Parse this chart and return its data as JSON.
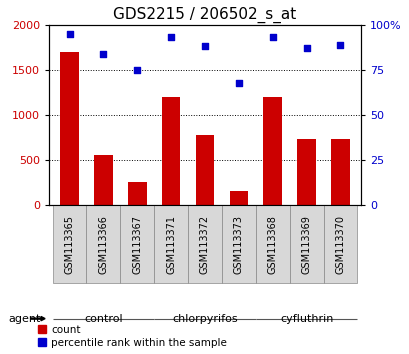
{
  "title": "GDS2215 / 206502_s_at",
  "categories": [
    "GSM113365",
    "GSM113366",
    "GSM113367",
    "GSM113371",
    "GSM113372",
    "GSM113373",
    "GSM113368",
    "GSM113369",
    "GSM113370"
  ],
  "bar_values": [
    1700,
    560,
    260,
    1200,
    780,
    160,
    1200,
    730,
    730
  ],
  "dot_values": [
    95,
    84,
    75,
    93,
    88,
    68,
    93,
    87,
    89
  ],
  "bar_color": "#cc0000",
  "dot_color": "#0000cc",
  "left_ylim": [
    0,
    2000
  ],
  "right_ylim": [
    0,
    100
  ],
  "left_yticks": [
    0,
    500,
    1000,
    1500,
    2000
  ],
  "right_yticks": [
    0,
    25,
    50,
    75,
    100
  ],
  "right_yticklabels": [
    "0",
    "25",
    "50",
    "75",
    "100%"
  ],
  "groups": [
    {
      "label": "control",
      "indices": [
        0,
        1,
        2
      ],
      "color": "#ccffcc"
    },
    {
      "label": "chlorpyrifos",
      "indices": [
        3,
        4,
        5
      ],
      "color": "#99ee99"
    },
    {
      "label": "cyfluthrin",
      "indices": [
        6,
        7,
        8
      ],
      "color": "#44bb44"
    }
  ],
  "agent_label": "agent",
  "legend_bar_label": "count",
  "legend_dot_label": "percentile rank within the sample",
  "grid_color": "#000000",
  "plot_bg": "#ffffff",
  "title_fontsize": 11,
  "bar_tick_fontsize": 8,
  "cat_fontsize": 7,
  "group_fontsize": 8,
  "legend_fontsize": 7.5
}
